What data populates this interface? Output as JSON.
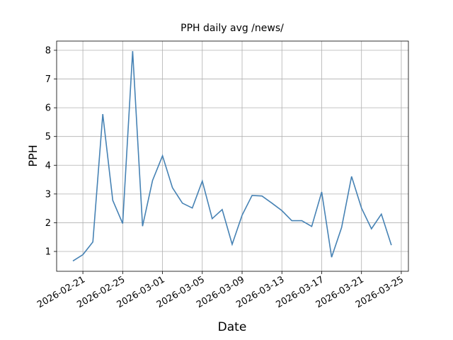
{
  "chart_data": {
    "type": "line",
    "title": "PPH daily avg /news/",
    "xlabel": "Date",
    "ylabel": "PPH",
    "x": [
      "2026-02-20",
      "2026-02-21",
      "2026-02-22",
      "2026-02-23",
      "2026-02-24",
      "2026-02-25",
      "2026-02-26",
      "2026-02-27",
      "2026-02-28",
      "2026-03-01",
      "2026-03-02",
      "2026-03-03",
      "2026-03-04",
      "2026-03-05",
      "2026-03-06",
      "2026-03-07",
      "2026-03-08",
      "2026-03-09",
      "2026-03-10",
      "2026-03-11",
      "2026-03-12",
      "2026-03-13",
      "2026-03-14",
      "2026-03-15",
      "2026-03-16",
      "2026-03-17",
      "2026-03-18",
      "2026-03-19",
      "2026-03-20",
      "2026-03-21",
      "2026-03-22",
      "2026-03-23",
      "2026-03-24"
    ],
    "series": [
      {
        "name": "PPH",
        "color": "#4682b4",
        "values": [
          0.67,
          0.89,
          1.33,
          5.78,
          2.78,
          1.97,
          7.97,
          1.88,
          3.47,
          4.33,
          3.22,
          2.68,
          2.51,
          3.45,
          2.14,
          2.46,
          1.25,
          2.26,
          2.95,
          2.93,
          2.68,
          2.42,
          2.07,
          2.07,
          1.87,
          3.07,
          0.8,
          1.83,
          3.61,
          2.51,
          1.79,
          2.3,
          1.22
        ]
      }
    ],
    "xlim": [
      "2026-02-18T08:40",
      "2026-03-25T17:10"
    ],
    "xticks": [
      "2026-02-21",
      "2026-02-25",
      "2026-03-01",
      "2026-03-05",
      "2026-03-09",
      "2026-03-13",
      "2026-03-17",
      "2026-03-21",
      "2026-03-25"
    ],
    "ylim": [
      0.31,
      8.32
    ],
    "yticks": [
      1,
      2,
      3,
      4,
      5,
      6,
      7,
      8
    ],
    "grid": true
  }
}
